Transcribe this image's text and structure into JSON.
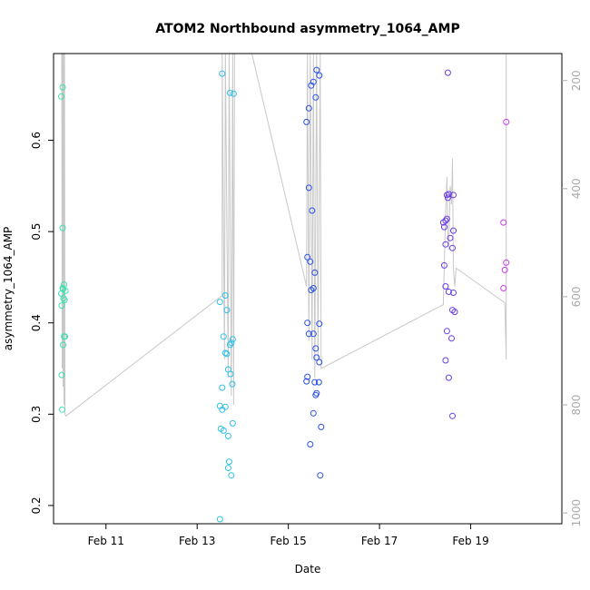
{
  "chart_data": {
    "type": "scatter",
    "title": "ATOM2 Northbound asymmetry_1064_AMP",
    "xlabel": "Date",
    "ylabel": "asymmetry_1064_AMP",
    "x_ticks": [
      "Feb 11",
      "Feb 13",
      "Feb 15",
      "Feb 17",
      "Feb 19"
    ],
    "x_tick_values": [
      11,
      13,
      15,
      17,
      19
    ],
    "xlim": [
      9.85,
      21.0
    ],
    "y_ticks": [
      0.2,
      0.3,
      0.4,
      0.5,
      0.6
    ],
    "ylim": [
      0.18,
      0.695
    ],
    "y2_ticks": [
      200,
      400,
      600,
      800,
      1000
    ],
    "y2lim": [
      1020,
      150
    ],
    "grid": false,
    "series": [
      {
        "color": "#3de0b0",
        "points": [
          [
            10.02,
            0.648
          ],
          [
            10.05,
            0.658
          ],
          [
            10.02,
            0.432
          ],
          [
            10.05,
            0.438
          ],
          [
            10.08,
            0.442
          ],
          [
            10.03,
            0.419
          ],
          [
            10.06,
            0.437
          ],
          [
            10.09,
            0.425
          ],
          [
            10.11,
            0.435
          ],
          [
            10.05,
            0.504
          ],
          [
            10.06,
            0.376
          ],
          [
            10.08,
            0.385
          ],
          [
            10.1,
            0.385
          ],
          [
            10.03,
            0.343
          ],
          [
            10.04,
            0.305
          ],
          [
            10.07,
            0.427
          ]
        ]
      },
      {
        "color": "#2ec0e8",
        "points": [
          [
            13.55,
            0.673
          ],
          [
            13.5,
            0.423
          ],
          [
            13.62,
            0.43
          ],
          [
            13.65,
            0.414
          ],
          [
            13.58,
            0.385
          ],
          [
            13.62,
            0.367
          ],
          [
            13.65,
            0.366
          ],
          [
            13.72,
            0.376
          ],
          [
            13.75,
            0.378
          ],
          [
            13.78,
            0.382
          ],
          [
            13.68,
            0.349
          ],
          [
            13.73,
            0.344
          ],
          [
            13.77,
            0.333
          ],
          [
            13.55,
            0.329
          ],
          [
            13.5,
            0.309
          ],
          [
            13.55,
            0.305
          ],
          [
            13.62,
            0.308
          ],
          [
            13.78,
            0.29
          ],
          [
            13.52,
            0.284
          ],
          [
            13.58,
            0.282
          ],
          [
            13.68,
            0.276
          ],
          [
            13.7,
            0.248
          ],
          [
            13.68,
            0.241
          ],
          [
            13.75,
            0.233
          ],
          [
            13.5,
            0.185
          ],
          [
            13.72,
            0.652
          ],
          [
            13.8,
            0.651
          ]
        ]
      },
      {
        "color": "#2850e8",
        "points": [
          [
            15.5,
            0.66
          ],
          [
            15.55,
            0.664
          ],
          [
            15.6,
            0.647
          ],
          [
            15.45,
            0.635
          ],
          [
            15.4,
            0.62
          ],
          [
            15.62,
            0.677
          ],
          [
            15.68,
            0.671
          ],
          [
            15.45,
            0.548
          ],
          [
            15.52,
            0.523
          ],
          [
            15.42,
            0.472
          ],
          [
            15.48,
            0.467
          ],
          [
            15.58,
            0.455
          ],
          [
            15.5,
            0.436
          ],
          [
            15.55,
            0.438
          ],
          [
            15.42,
            0.4
          ],
          [
            15.45,
            0.388
          ],
          [
            15.55,
            0.388
          ],
          [
            15.68,
            0.399
          ],
          [
            15.6,
            0.372
          ],
          [
            15.62,
            0.362
          ],
          [
            15.68,
            0.357
          ],
          [
            15.42,
            0.341
          ],
          [
            15.4,
            0.336
          ],
          [
            15.58,
            0.335
          ],
          [
            15.67,
            0.335
          ],
          [
            15.62,
            0.323
          ],
          [
            15.6,
            0.321
          ],
          [
            15.55,
            0.301
          ],
          [
            15.72,
            0.286
          ],
          [
            15.48,
            0.267
          ],
          [
            15.7,
            0.233
          ]
        ]
      },
      {
        "color": "#6a3ce8",
        "points": [
          [
            18.5,
            0.674
          ],
          [
            18.48,
            0.54
          ],
          [
            18.52,
            0.541
          ],
          [
            18.5,
            0.537
          ],
          [
            18.62,
            0.54
          ],
          [
            18.45,
            0.512
          ],
          [
            18.48,
            0.514
          ],
          [
            18.42,
            0.505
          ],
          [
            18.62,
            0.501
          ],
          [
            18.55,
            0.493
          ],
          [
            18.45,
            0.486
          ],
          [
            18.6,
            0.482
          ],
          [
            18.42,
            0.463
          ],
          [
            18.45,
            0.44
          ],
          [
            18.52,
            0.434
          ],
          [
            18.62,
            0.433
          ],
          [
            18.6,
            0.414
          ],
          [
            18.65,
            0.412
          ],
          [
            18.48,
            0.391
          ],
          [
            18.58,
            0.383
          ],
          [
            18.45,
            0.359
          ],
          [
            18.52,
            0.34
          ],
          [
            18.6,
            0.298
          ],
          [
            18.4,
            0.51
          ]
        ]
      },
      {
        "color": "#c83ce8",
        "points": [
          [
            19.78,
            0.62
          ],
          [
            19.72,
            0.51
          ],
          [
            19.78,
            0.466
          ],
          [
            19.75,
            0.458
          ],
          [
            19.72,
            0.438
          ]
        ]
      }
    ],
    "line_color": "#c8c8c8",
    "line_path": [
      [
        10.03,
        0.695
      ],
      [
        10.04,
        0.35
      ],
      [
        10.05,
        0.695
      ],
      [
        10.06,
        0.33
      ],
      [
        10.07,
        0.695
      ],
      [
        10.08,
        0.31
      ],
      [
        10.09,
        0.695
      ],
      [
        10.1,
        0.3
      ],
      [
        10.12,
        0.298
      ],
      [
        13.55,
        0.43
      ],
      [
        13.55,
        0.695
      ],
      [
        13.6,
        0.36
      ],
      [
        13.62,
        0.695
      ],
      [
        13.68,
        0.34
      ],
      [
        13.7,
        0.695
      ],
      [
        13.75,
        0.32
      ],
      [
        13.78,
        0.695
      ],
      [
        13.8,
        0.31
      ],
      [
        13.82,
        0.695
      ],
      [
        14.2,
        0.695
      ],
      [
        15.4,
        0.44
      ],
      [
        15.42,
        0.695
      ],
      [
        15.45,
        0.38
      ],
      [
        15.48,
        0.695
      ],
      [
        15.52,
        0.36
      ],
      [
        15.55,
        0.695
      ],
      [
        15.58,
        0.34
      ],
      [
        15.62,
        0.695
      ],
      [
        15.65,
        0.36
      ],
      [
        15.7,
        0.695
      ],
      [
        15.72,
        0.35
      ],
      [
        18.4,
        0.42
      ],
      [
        18.42,
        0.46
      ],
      [
        18.45,
        0.52
      ],
      [
        18.48,
        0.56
      ],
      [
        18.5,
        0.5
      ],
      [
        18.52,
        0.48
      ],
      [
        18.55,
        0.55
      ],
      [
        18.58,
        0.53
      ],
      [
        18.6,
        0.58
      ],
      [
        18.62,
        0.46
      ],
      [
        18.65,
        0.44
      ],
      [
        18.68,
        0.46
      ],
      [
        19.75,
        0.422
      ],
      [
        19.78,
        0.36
      ],
      [
        19.78,
        0.695
      ]
    ]
  }
}
